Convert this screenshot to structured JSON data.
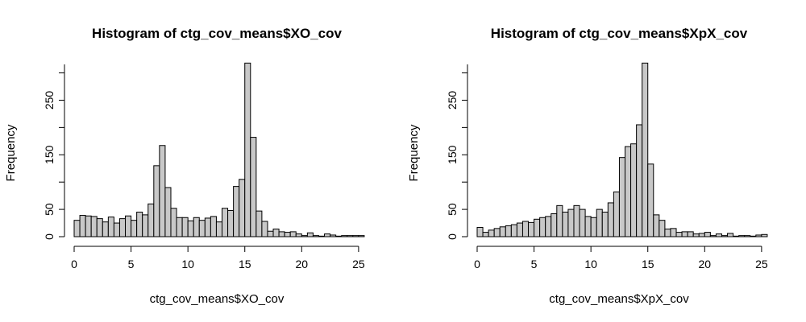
{
  "chart_data": [
    {
      "type": "bar",
      "title": "Histogram of ctg_cov_means$XO_cov",
      "xlabel": "ctg_cov_means$XO_cov",
      "ylabel": "Frequency",
      "bin_width": 0.5,
      "bin_start": 0,
      "xlim": [
        0,
        26
      ],
      "ylim": [
        0,
        320
      ],
      "xticks": [
        0,
        5,
        10,
        15,
        20,
        25
      ],
      "yticks": [
        0,
        50,
        150,
        250
      ],
      "bar_fill": "#c8c8c8",
      "values": [
        30,
        39,
        38,
        37,
        33,
        27,
        36,
        25,
        33,
        38,
        30,
        45,
        40,
        60,
        130,
        167,
        90,
        52,
        35,
        35,
        29,
        35,
        30,
        34,
        37,
        27,
        52,
        48,
        92,
        105,
        318,
        182,
        47,
        28,
        10,
        14,
        9,
        8,
        9,
        5,
        2,
        7,
        2,
        1,
        5,
        3,
        1,
        2,
        2,
        2,
        2,
        0
      ]
    },
    {
      "type": "bar",
      "title": "Histogram of ctg_cov_means$XpX_cov",
      "xlabel": "ctg_cov_means$XpX_cov",
      "ylabel": "Frequency",
      "bin_width": 0.5,
      "bin_start": 0,
      "xlim": [
        0,
        26
      ],
      "ylim": [
        0,
        320
      ],
      "xticks": [
        0,
        5,
        10,
        15,
        20,
        25
      ],
      "yticks": [
        0,
        50,
        150,
        250
      ],
      "bar_fill": "#c8c8c8",
      "values": [
        17,
        8,
        12,
        15,
        18,
        20,
        22,
        25,
        28,
        26,
        32,
        35,
        37,
        42,
        57,
        45,
        50,
        57,
        50,
        37,
        35,
        50,
        45,
        62,
        82,
        145,
        165,
        170,
        205,
        318,
        133,
        40,
        30,
        14,
        15,
        8,
        9,
        9,
        5,
        6,
        8,
        2,
        5,
        2,
        6,
        1,
        2,
        2,
        1,
        3,
        4,
        0
      ]
    }
  ]
}
